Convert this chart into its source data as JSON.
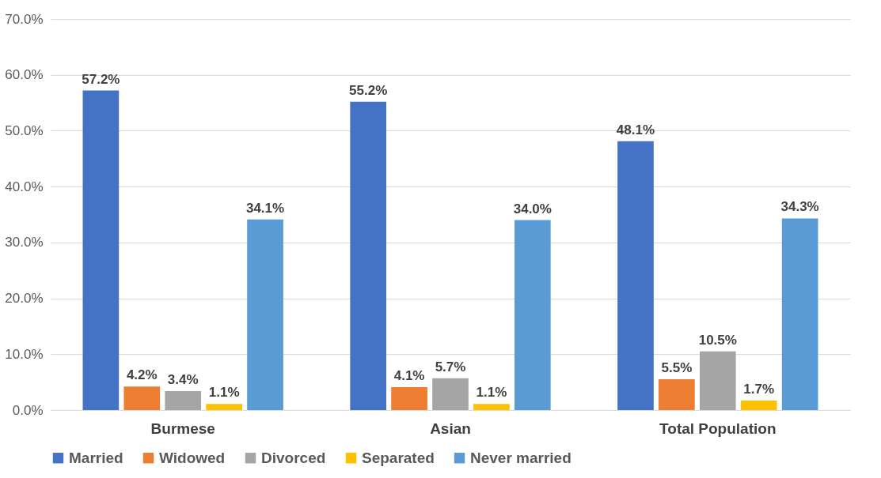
{
  "chart_data": {
    "type": "bar",
    "categories": [
      "Burmese",
      "Asian",
      "Total Population"
    ],
    "series": [
      {
        "name": "Married",
        "color": "#4472c4",
        "values": [
          57.2,
          55.2,
          48.1
        ],
        "value_labels": [
          "57.2%",
          "55.2%",
          "48.1%"
        ]
      },
      {
        "name": "Widowed",
        "color": "#ed7d31",
        "values": [
          4.2,
          4.1,
          5.5
        ],
        "value_labels": [
          "4.2%",
          "4.1%",
          "5.5%"
        ]
      },
      {
        "name": "Divorced",
        "color": "#a5a5a5",
        "values": [
          3.4,
          5.7,
          10.5
        ],
        "value_labels": [
          "3.4%",
          "5.7%",
          "10.5%"
        ]
      },
      {
        "name": "Separated",
        "color": "#ffc000",
        "values": [
          1.1,
          1.1,
          1.7
        ],
        "value_labels": [
          "1.1%",
          "1.1%",
          "1.7%"
        ]
      },
      {
        "name": "Never married",
        "color": "#5b9bd5",
        "values": [
          34.1,
          34.0,
          34.3
        ],
        "value_labels": [
          "34.1%",
          "34.0%",
          "34.3%"
        ]
      }
    ],
    "ylim": [
      0,
      70
    ],
    "yticks": [
      {
        "value": 0,
        "label": "0.0%"
      },
      {
        "value": 10,
        "label": "10.0%"
      },
      {
        "value": 20,
        "label": "20.0%"
      },
      {
        "value": 30,
        "label": "30.0%"
      },
      {
        "value": 40,
        "label": "40.0%"
      },
      {
        "value": 50,
        "label": "50.0%"
      },
      {
        "value": 60,
        "label": "60.0%"
      },
      {
        "value": 70,
        "label": "70.0%"
      }
    ],
    "grid": "y",
    "legend": "bottom"
  }
}
